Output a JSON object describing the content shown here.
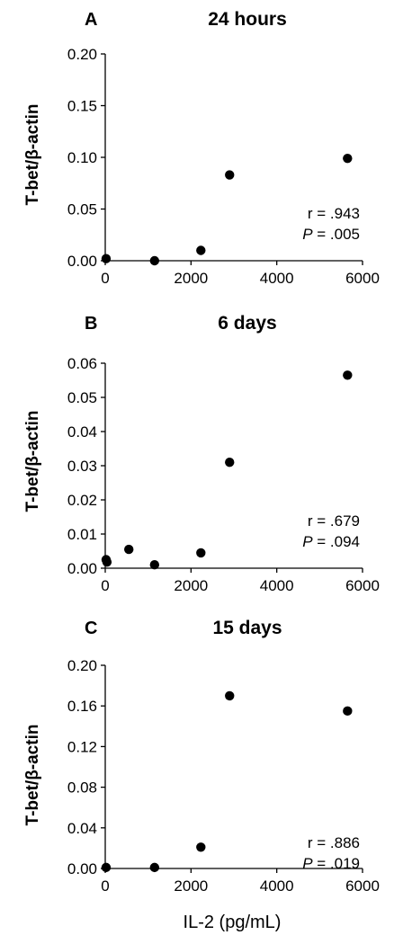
{
  "figure": {
    "xlabel": "IL-2 (pg/mL)"
  },
  "chart_data": [
    {
      "type": "scatter",
      "panel": "A",
      "title": "24 hours",
      "xlabel": "",
      "ylabel": "T-bet/β-actin",
      "xlim": [
        0,
        6000
      ],
      "ylim": [
        0,
        0.2
      ],
      "xticks": [
        0,
        2000,
        4000,
        6000
      ],
      "xtick_labels": [
        "0",
        "2000",
        "4000",
        "6000"
      ],
      "yticks": [
        0,
        0.05,
        0.1,
        0.15,
        0.2
      ],
      "ytick_labels": [
        "0.00",
        "0.05",
        "0.10",
        "0.15",
        "0.20"
      ],
      "points": [
        {
          "x": 20,
          "y": 0.002
        },
        {
          "x": 1150,
          "y": 0.0
        },
        {
          "x": 2230,
          "y": 0.01
        },
        {
          "x": 2900,
          "y": 0.083
        },
        {
          "x": 5650,
          "y": 0.099
        }
      ],
      "annotation": {
        "r_label": "r = .943",
        "p_prefix": "P",
        "p_value": " = .005"
      }
    },
    {
      "type": "scatter",
      "panel": "B",
      "title": "6 days",
      "xlabel": "",
      "ylabel": "T-bet/β-actin",
      "xlim": [
        0,
        6000
      ],
      "ylim": [
        0,
        0.06
      ],
      "xticks": [
        0,
        2000,
        4000,
        6000
      ],
      "xtick_labels": [
        "0",
        "2000",
        "4000",
        "6000"
      ],
      "yticks": [
        0,
        0.01,
        0.02,
        0.03,
        0.04,
        0.05,
        0.06
      ],
      "ytick_labels": [
        "0.00",
        "0.01",
        "0.02",
        "0.03",
        "0.04",
        "0.05",
        "0.06"
      ],
      "points": [
        {
          "x": 20,
          "y": 0.0025
        },
        {
          "x": 40,
          "y": 0.0018
        },
        {
          "x": 550,
          "y": 0.0055
        },
        {
          "x": 1150,
          "y": 0.001
        },
        {
          "x": 2230,
          "y": 0.0045
        },
        {
          "x": 2900,
          "y": 0.031
        },
        {
          "x": 5650,
          "y": 0.0565
        }
      ],
      "annotation": {
        "r_label": "r = .679",
        "p_prefix": "P",
        "p_value": " = .094"
      }
    },
    {
      "type": "scatter",
      "panel": "C",
      "title": "15 days",
      "xlabel": "IL-2 (pg/mL)",
      "ylabel": "T-bet/β-actin",
      "xlim": [
        0,
        6000
      ],
      "ylim": [
        0,
        0.2
      ],
      "xticks": [
        0,
        2000,
        4000,
        6000
      ],
      "xtick_labels": [
        "0",
        "2000",
        "4000",
        "6000"
      ],
      "yticks": [
        0,
        0.04,
        0.08,
        0.12,
        0.16,
        0.2
      ],
      "ytick_labels": [
        "0.00",
        "0.04",
        "0.08",
        "0.12",
        "0.16",
        "0.20"
      ],
      "points": [
        {
          "x": 20,
          "y": 0.001
        },
        {
          "x": 1150,
          "y": 0.001
        },
        {
          "x": 2230,
          "y": 0.021
        },
        {
          "x": 2900,
          "y": 0.17
        },
        {
          "x": 5650,
          "y": 0.155
        }
      ],
      "annotation": {
        "r_label": "r = .886",
        "p_prefix": "P",
        "p_value": " = .019"
      }
    }
  ]
}
